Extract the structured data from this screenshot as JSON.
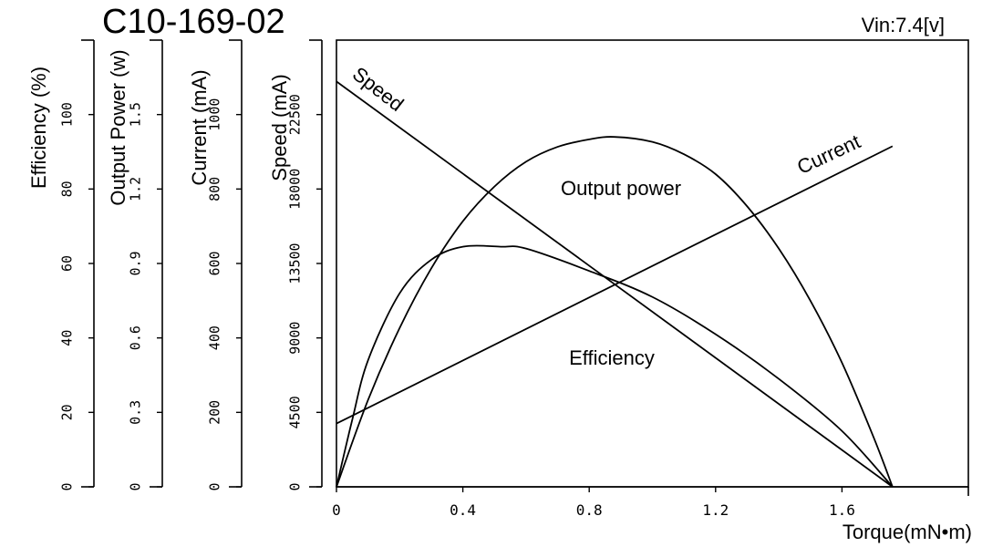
{
  "header": {
    "model": "C10-169-02",
    "voltage": "Vin:7.4[v]"
  },
  "chart_data": {
    "type": "line",
    "title": "C10-169-02",
    "xlabel": "Torque(mN•m)",
    "xlim": [
      0,
      2.0
    ],
    "x_ticks": [
      0,
      0.4,
      0.8,
      1.2,
      1.6
    ],
    "x_tick_labels": [
      "0",
      "0.4",
      "0.8",
      "1.2",
      "1.6"
    ],
    "axes": [
      {
        "key": "efficiency",
        "label": "Efficiency (%)",
        "ylim": [
          0,
          120
        ],
        "ticks": [
          0,
          20,
          40,
          60,
          80,
          100
        ],
        "tick_labels": [
          "0",
          "20",
          "40",
          "60",
          "80",
          "100"
        ]
      },
      {
        "key": "power",
        "label": "Output Power (w)",
        "ylim": [
          0,
          1.8
        ],
        "ticks": [
          0,
          0.3,
          0.6,
          0.9,
          1.2,
          1.5
        ],
        "tick_labels": [
          "0",
          "0.3",
          "0.6",
          "0.9",
          "1.2",
          "1.5"
        ]
      },
      {
        "key": "current",
        "label": "Current (mA)",
        "ylim": [
          0,
          1200
        ],
        "ticks": [
          0,
          200,
          400,
          600,
          800,
          1000
        ],
        "tick_labels": [
          "0",
          "200",
          "400",
          "600",
          "800",
          "1000"
        ]
      },
      {
        "key": "speed",
        "label": "Speed  (mA)",
        "ylim": [
          0,
          27000
        ],
        "ticks": [
          0,
          4500,
          9000,
          13500,
          18000,
          22500
        ],
        "tick_labels": [
          "0",
          "4500",
          "9000",
          "13500",
          "18000",
          "22500"
        ]
      }
    ],
    "series": [
      {
        "name": "Speed",
        "axis": "speed",
        "x": [
          0,
          1.76
        ],
        "y": [
          24500,
          0
        ]
      },
      {
        "name": "Current",
        "axis": "current",
        "x": [
          0,
          1.76
        ],
        "y": [
          170,
          915
        ]
      },
      {
        "name": "Output power",
        "axis": "power",
        "x": [
          0,
          0.1,
          0.2,
          0.3,
          0.4,
          0.5,
          0.6,
          0.7,
          0.8,
          0.88,
          1.0,
          1.1,
          1.2,
          1.3,
          1.4,
          1.5,
          1.6,
          1.7,
          1.76
        ],
        "y": [
          0,
          0.35,
          0.64,
          0.88,
          1.07,
          1.21,
          1.31,
          1.37,
          1.4,
          1.41,
          1.39,
          1.34,
          1.26,
          1.13,
          0.96,
          0.75,
          0.5,
          0.2,
          0
        ]
      },
      {
        "name": "Efficiency",
        "axis": "efficiency",
        "x": [
          0,
          0.05,
          0.1,
          0.2,
          0.3,
          0.4,
          0.52,
          0.6,
          0.8,
          1.0,
          1.2,
          1.4,
          1.6,
          1.76
        ],
        "y": [
          0,
          18,
          34,
          52,
          61,
          64.5,
          64.5,
          64,
          58,
          51,
          41,
          29,
          15,
          0
        ]
      }
    ],
    "annotations": [
      "Speed",
      "Current",
      "Output power",
      "Efficiency"
    ],
    "grid": false
  }
}
